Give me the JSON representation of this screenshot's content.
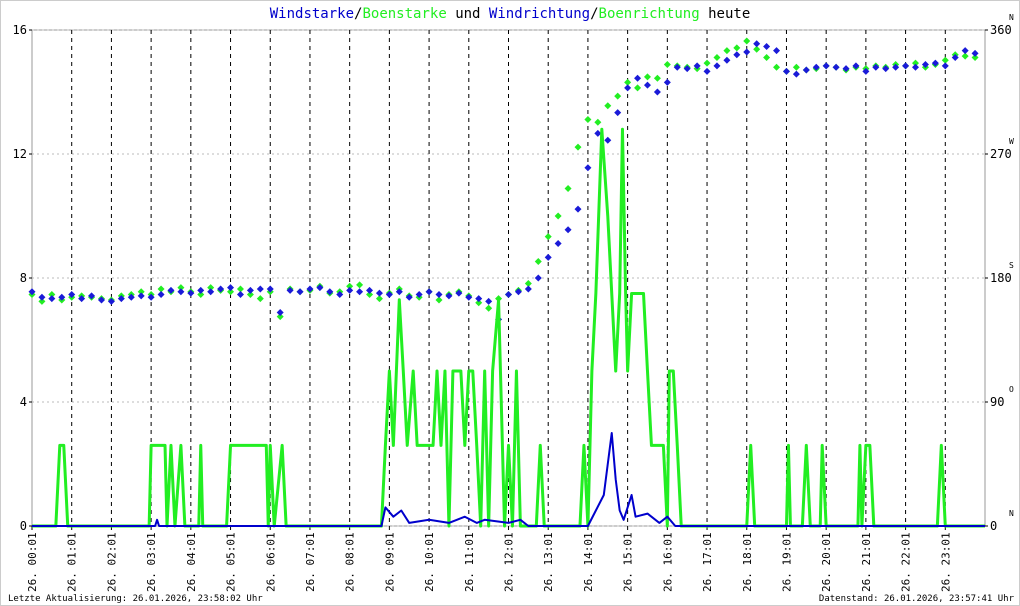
{
  "chart_data": {
    "type": "line",
    "title_joins": [
      "/",
      " und ",
      "/",
      " heute"
    ],
    "xlim": [
      0,
      24
    ],
    "xticks": [
      {
        "value": 0,
        "label": "26. 00:01"
      },
      {
        "value": 1,
        "label": "26. 01:01"
      },
      {
        "value": 2,
        "label": "26. 02:01"
      },
      {
        "value": 3,
        "label": "26. 03:01"
      },
      {
        "value": 4,
        "label": "26. 04:01"
      },
      {
        "value": 5,
        "label": "26. 05:01"
      },
      {
        "value": 6,
        "label": "26. 06:01"
      },
      {
        "value": 7,
        "label": "26. 07:01"
      },
      {
        "value": 8,
        "label": "26. 08:01"
      },
      {
        "value": 9,
        "label": "26. 09:01"
      },
      {
        "value": 10,
        "label": "26. 10:01"
      },
      {
        "value": 11,
        "label": "26. 11:01"
      },
      {
        "value": 12,
        "label": "26. 12:01"
      },
      {
        "value": 13,
        "label": "26. 13:01"
      },
      {
        "value": 14,
        "label": "26. 14:01"
      },
      {
        "value": 15,
        "label": "26. 15:01"
      },
      {
        "value": 16,
        "label": "26. 16:01"
      },
      {
        "value": 17,
        "label": "26. 17:01"
      },
      {
        "value": 18,
        "label": "26. 18:01"
      },
      {
        "value": 19,
        "label": "26. 19:01"
      },
      {
        "value": 20,
        "label": "26. 20:01"
      },
      {
        "value": 21,
        "label": "26. 21:01"
      },
      {
        "value": 22,
        "label": "26. 22:01"
      },
      {
        "value": 23,
        "label": "26. 23:01"
      }
    ],
    "ylim": [
      0,
      16
    ],
    "yticks": [
      0,
      4,
      8,
      12,
      16
    ],
    "y2lim": [
      0,
      360
    ],
    "y2ticks": [
      0,
      90,
      180,
      270,
      360
    ],
    "y2tick_compass": [
      "N",
      "O",
      "S",
      "W",
      "N"
    ],
    "grid": true,
    "series": [
      {
        "name": "Boenstarke",
        "color": "#22ee22",
        "kind": "line",
        "x": [
          0,
          0.6,
          0.7,
          0.8,
          0.9,
          2.95,
          3.0,
          3.35,
          3.4,
          3.5,
          3.6,
          3.75,
          3.85,
          4.2,
          4.25,
          4.3,
          4.9,
          5.0,
          5.9,
          5.95,
          6.0,
          6.1,
          6.3,
          6.4,
          8.8,
          8.9,
          9.0,
          9.1,
          9.25,
          9.35,
          9.45,
          9.6,
          9.7,
          9.8,
          10.1,
          10.2,
          10.3,
          10.4,
          10.5,
          10.6,
          10.8,
          10.9,
          11.0,
          11.1,
          11.2,
          11.3,
          11.4,
          11.5,
          11.6,
          11.75,
          11.9,
          12.0,
          12.1,
          12.2,
          12.3,
          12.7,
          12.8,
          12.9,
          13.8,
          13.9,
          14.0,
          14.1,
          14.2,
          14.35,
          14.5,
          14.6,
          14.7,
          14.8,
          14.87,
          14.95,
          15.0,
          15.1,
          15.4,
          15.5,
          15.6,
          15.9,
          16.0,
          16.05,
          16.15,
          16.25,
          16.35,
          18.0,
          18.1,
          18.2,
          19.0,
          19.05,
          19.1,
          19.4,
          19.5,
          19.6,
          19.85,
          19.9,
          20.0,
          20.8,
          20.85,
          20.9,
          21.0,
          21.1,
          21.2,
          22.8,
          22.9,
          23.0,
          24
        ],
        "values": [
          0,
          0,
          2.6,
          2.6,
          0,
          0,
          2.6,
          2.6,
          0,
          2.6,
          0,
          2.6,
          0,
          0,
          2.6,
          0,
          0,
          2.6,
          2.6,
          0,
          2.6,
          0,
          2.6,
          0,
          0,
          2.6,
          5.0,
          2.6,
          7.3,
          5.0,
          2.6,
          5.0,
          2.6,
          2.6,
          2.6,
          5.0,
          2.6,
          5.0,
          0,
          5.0,
          5.0,
          2.6,
          5.0,
          5.0,
          2.6,
          0,
          5.0,
          0,
          5.0,
          7.3,
          0,
          2.6,
          0,
          5.0,
          0,
          0,
          2.6,
          0,
          0,
          2.6,
          0,
          5.0,
          7.5,
          12.8,
          10,
          7.5,
          5.0,
          7.5,
          12.8,
          7.5,
          5.0,
          7.5,
          7.5,
          5.0,
          2.6,
          2.6,
          0,
          5.0,
          5.0,
          2.6,
          0,
          0,
          2.6,
          0,
          0,
          2.6,
          0,
          0,
          2.6,
          0,
          0,
          2.6,
          0,
          0,
          2.6,
          0,
          2.6,
          2.6,
          0,
          0,
          2.6,
          0,
          0
        ]
      },
      {
        "name": "Windstarke",
        "color": "#0000cc",
        "kind": "line",
        "x": [
          0,
          3.1,
          3.15,
          3.2,
          8.8,
          8.9,
          9.1,
          9.3,
          9.5,
          10,
          10.5,
          10.9,
          11.2,
          11.4,
          12,
          12.3,
          12.5,
          14.0,
          14.2,
          14.4,
          14.6,
          14.7,
          14.8,
          14.9,
          15.1,
          15.2,
          15.5,
          15.8,
          16.0,
          16.2,
          24
        ],
        "values": [
          0,
          0,
          0.2,
          0,
          0,
          0.6,
          0.3,
          0.5,
          0.1,
          0.2,
          0.1,
          0.3,
          0.1,
          0.2,
          0.1,
          0.2,
          0,
          0,
          0.5,
          1.0,
          3.0,
          1.5,
          0.5,
          0.2,
          1.0,
          0.3,
          0.4,
          0.1,
          0.3,
          0,
          0
        ]
      },
      {
        "name": "Boenrichtung",
        "color": "#22ee22",
        "kind": "scatter",
        "axis": "y2",
        "x": [
          0,
          0.25,
          0.5,
          0.75,
          1,
          1.25,
          1.5,
          1.75,
          2,
          2.25,
          2.5,
          2.75,
          3,
          3.25,
          3.5,
          3.75,
          4,
          4.25,
          4.5,
          4.75,
          5,
          5.25,
          5.5,
          5.75,
          6,
          6.25,
          6.5,
          6.75,
          7,
          7.25,
          7.5,
          7.75,
          8,
          8.25,
          8.5,
          8.75,
          9,
          9.25,
          9.5,
          9.75,
          10,
          10.25,
          10.5,
          10.75,
          11,
          11.25,
          11.5,
          11.75,
          12,
          12.25,
          12.5,
          12.75,
          13,
          13.25,
          13.5,
          13.75,
          14,
          14.25,
          14.5,
          14.75,
          15,
          15.25,
          15.5,
          15.75,
          16,
          16.25,
          16.5,
          16.75,
          17,
          17.25,
          17.5,
          17.75,
          18,
          18.25,
          18.5,
          18.75,
          19,
          19.25,
          19.5,
          19.75,
          20,
          20.25,
          20.5,
          20.75,
          21,
          21.25,
          21.5,
          21.75,
          22,
          22.25,
          22.5,
          22.75,
          23,
          23.25,
          23.5,
          23.75
        ],
        "values": [
          168,
          163,
          168,
          164,
          166,
          167,
          166,
          165,
          164,
          167,
          168,
          170,
          168,
          172,
          170,
          173,
          170,
          168,
          173,
          171,
          170,
          172,
          168,
          165,
          170,
          152,
          172,
          170,
          171,
          174,
          169,
          170,
          174,
          175,
          168,
          165,
          169,
          172,
          167,
          166,
          170,
          164,
          168,
          170,
          167,
          162,
          158,
          165,
          168,
          171,
          176,
          192,
          210,
          225,
          245,
          275,
          295,
          293,
          305,
          312,
          322,
          318,
          326,
          325,
          335,
          334,
          333,
          332,
          336,
          340,
          345,
          347,
          352,
          346,
          340,
          333,
          330,
          333,
          331,
          332,
          334,
          333,
          331,
          333,
          332,
          334,
          333,
          335,
          334,
          336,
          333,
          335,
          338,
          342,
          341,
          340
        ]
      },
      {
        "name": "Windrichtung",
        "color": "#1a1ad8",
        "kind": "scatter",
        "axis": "y2",
        "x": [
          0,
          0.25,
          0.5,
          0.75,
          1,
          1.25,
          1.5,
          1.75,
          2,
          2.25,
          2.5,
          2.75,
          3,
          3.25,
          3.5,
          3.75,
          4,
          4.25,
          4.5,
          4.75,
          5,
          5.25,
          5.5,
          5.75,
          6,
          6.25,
          6.5,
          6.75,
          7,
          7.25,
          7.5,
          7.75,
          8,
          8.25,
          8.5,
          8.75,
          9,
          9.25,
          9.5,
          9.75,
          10,
          10.25,
          10.5,
          10.75,
          11,
          11.25,
          11.5,
          11.75,
          12,
          12.25,
          12.5,
          12.75,
          13,
          13.25,
          13.5,
          13.75,
          14,
          14.25,
          14.5,
          14.75,
          15,
          15.25,
          15.5,
          15.75,
          16,
          16.25,
          16.5,
          16.75,
          17,
          17.25,
          17.5,
          17.75,
          18,
          18.25,
          18.5,
          18.75,
          19,
          19.25,
          19.5,
          19.75,
          20,
          20.25,
          20.5,
          20.75,
          21,
          21.25,
          21.5,
          21.75,
          22,
          22.25,
          22.5,
          22.75,
          23,
          23.25,
          23.5,
          23.75
        ],
        "values": [
          170,
          166,
          165,
          166,
          168,
          165,
          167,
          164,
          163,
          165,
          166,
          167,
          166,
          168,
          171,
          170,
          169,
          171,
          170,
          172,
          173,
          168,
          171,
          172,
          172,
          155,
          171,
          170,
          172,
          173,
          170,
          168,
          171,
          170,
          171,
          169,
          168,
          170,
          166,
          168,
          170,
          168,
          167,
          169,
          166,
          165,
          163,
          150,
          168,
          170,
          172,
          180,
          195,
          205,
          215,
          230,
          260,
          285,
          280,
          300,
          318,
          325,
          320,
          315,
          322,
          333,
          332,
          334,
          330,
          334,
          338,
          342,
          344,
          350,
          348,
          345,
          330,
          328,
          331,
          333,
          334,
          333,
          332,
          334,
          330,
          333,
          332,
          333,
          334,
          333,
          335,
          336,
          334,
          340,
          345,
          343
        ]
      }
    ]
  },
  "footer": {
    "left": "Letzte Aktualisierung: 26.01.2026, 23:58:02 Uhr",
    "right": "Datenstand: 26.01.2026, 23:57:41 Uhr"
  }
}
